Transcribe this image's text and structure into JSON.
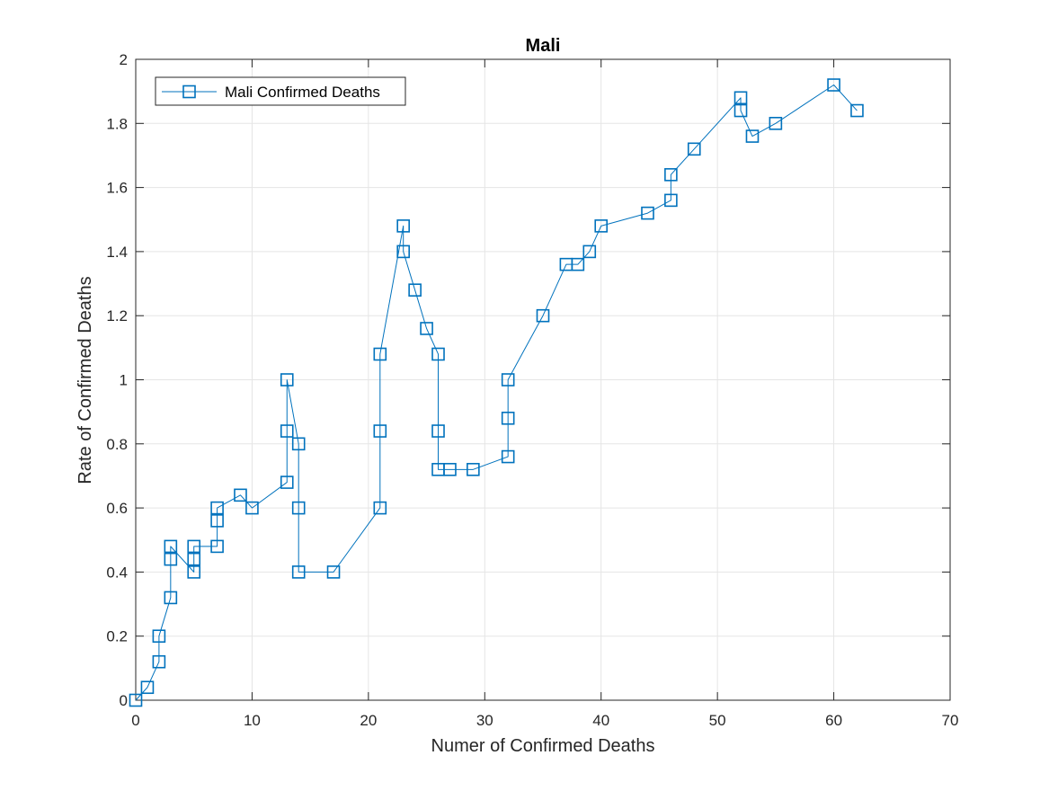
{
  "chart_data": {
    "type": "line",
    "title": "Mali",
    "xlabel": "Numer of Confirmed Deaths",
    "ylabel": "Rate of Confirmed Deaths",
    "xlim": [
      0,
      70
    ],
    "ylim": [
      0,
      2
    ],
    "xticks": [
      0,
      10,
      20,
      30,
      40,
      50,
      60,
      70
    ],
    "xtick_labels": [
      "0",
      "10",
      "20",
      "30",
      "40",
      "50",
      "60",
      "70"
    ],
    "yticks": [
      0,
      0.2,
      0.4,
      0.6,
      0.8,
      1,
      1.2,
      1.4,
      1.6,
      1.8,
      2
    ],
    "ytick_labels": [
      "0",
      "0.2",
      "0.4",
      "0.6",
      "0.8",
      "1",
      "1.2",
      "1.4",
      "1.6",
      "1.8",
      "2"
    ],
    "grid": true,
    "legend_position": "top-left",
    "series": [
      {
        "name": "Mali Confirmed Deaths",
        "color": "#0072BD",
        "marker": "square",
        "x": [
          0,
          1,
          2,
          2,
          3,
          3,
          3,
          5,
          5,
          5,
          7,
          7,
          7,
          9,
          10,
          13,
          13,
          13,
          14,
          14,
          14,
          17,
          21,
          21,
          21,
          23,
          23,
          24,
          25,
          26,
          26,
          26,
          27,
          29,
          32,
          32,
          32,
          35,
          37,
          38,
          39,
          40,
          44,
          46,
          46,
          48,
          52,
          52,
          53,
          55,
          60,
          62
        ],
        "y": [
          0,
          0.04,
          0.12,
          0.2,
          0.32,
          0.44,
          0.48,
          0.4,
          0.44,
          0.48,
          0.48,
          0.56,
          0.6,
          0.64,
          0.6,
          0.68,
          0.84,
          1.0,
          0.8,
          0.6,
          0.4,
          0.4,
          0.6,
          0.84,
          1.08,
          1.48,
          1.4,
          1.28,
          1.16,
          1.08,
          0.84,
          0.72,
          0.72,
          0.72,
          0.76,
          0.88,
          1.0,
          1.2,
          1.36,
          1.36,
          1.4,
          1.48,
          1.52,
          1.56,
          1.64,
          1.72,
          1.88,
          1.84,
          1.76,
          1.8,
          1.92,
          1.84
        ]
      }
    ]
  }
}
